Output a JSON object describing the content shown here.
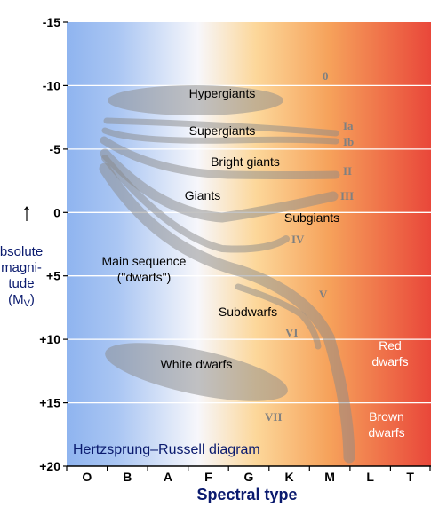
{
  "diagram": {
    "title": "Hertzsprung–Russell diagram",
    "x_axis": {
      "label": "Spectral type",
      "ticks": [
        "O",
        "B",
        "A",
        "F",
        "G",
        "K",
        "M",
        "L",
        "T"
      ]
    },
    "y_axis": {
      "arrow": "↑",
      "label_lines": [
        "bsolute",
        "magni-",
        "tude"
      ],
      "label_symbol": "(M",
      "label_subscript": "V",
      "label_close": ")",
      "ticks": [
        "-15",
        "-10",
        "-5",
        "0",
        "+5",
        "+10",
        "+15",
        "+20"
      ]
    },
    "regions": {
      "hypergiants": "Hypergiants",
      "supergiants": "Supergiants",
      "bright_giants": "Bright giants",
      "giants": "Giants",
      "subgiants": "Subgiants",
      "main_sequence_line1": "Main sequence",
      "main_sequence_line2": "(\"dwarfs\")",
      "subdwarfs": "Subdwarfs",
      "white_dwarfs": "White dwarfs",
      "red_dwarfs_line1": "Red",
      "red_dwarfs_line2": "dwarfs",
      "brown_dwarfs_line1": "Brown",
      "brown_dwarfs_line2": "dwarfs"
    },
    "luminosity_classes": {
      "class_0": "0",
      "class_ia": "Ia",
      "class_ib": "Ib",
      "class_ii": "II",
      "class_iii": "III",
      "class_iv": "IV",
      "class_v": "V",
      "class_vi": "VI",
      "class_vii": "VII"
    },
    "colors": {
      "hot_blue": "#8fb4ef",
      "white": "#f7f7fb",
      "yellow": "#fcd79a",
      "orange": "#f6a25b",
      "red": "#e9473a",
      "band": "#8a8a8a",
      "roman": "#808080",
      "axis_label": "#0a1a6e"
    }
  }
}
